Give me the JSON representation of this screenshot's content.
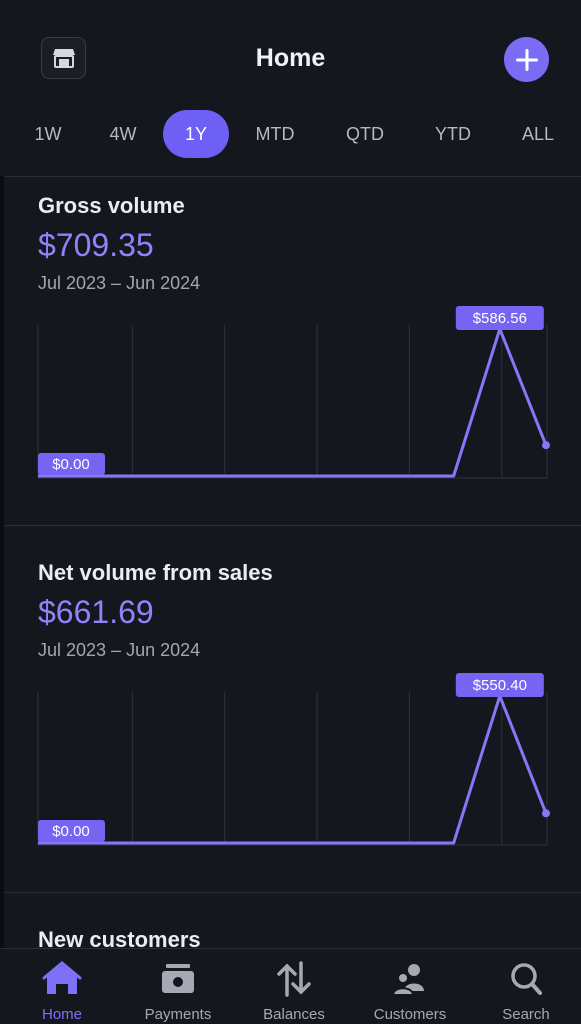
{
  "header": {
    "title": "Home",
    "store_icon": "storefront-icon",
    "add_icon": "plus-icon"
  },
  "range_tabs": [
    {
      "label": "1W",
      "active": false
    },
    {
      "label": "4W",
      "active": false
    },
    {
      "label": "1Y",
      "active": true
    },
    {
      "label": "MTD",
      "active": false
    },
    {
      "label": "QTD",
      "active": false
    },
    {
      "label": "YTD",
      "active": false
    },
    {
      "label": "ALL",
      "active": false
    }
  ],
  "cards": [
    {
      "title": "Gross volume",
      "value": "$709.35",
      "range": "Jul 2023 – Jun 2024",
      "chart_data": {
        "type": "line",
        "x": [
          "2023-07",
          "2023-08",
          "2023-09",
          "2023-10",
          "2023-11",
          "2023-12",
          "2024-01",
          "2024-02",
          "2024-03",
          "2024-04",
          "2024-05",
          "2024-06"
        ],
        "values": [
          0,
          0,
          0,
          0,
          0,
          0,
          0,
          0,
          0,
          0,
          586.56,
          122.79
        ],
        "ylim": [
          0,
          586.56
        ],
        "min_label": "$0.00",
        "max_label": "$586.56",
        "grid": true,
        "color": "#8677f8"
      }
    },
    {
      "title": "Net volume from sales",
      "value": "$661.69",
      "range": "Jul 2023 – Jun 2024",
      "chart_data": {
        "type": "line",
        "x": [
          "2023-07",
          "2023-08",
          "2023-09",
          "2023-10",
          "2023-11",
          "2023-12",
          "2024-01",
          "2024-02",
          "2024-03",
          "2024-04",
          "2024-05",
          "2024-06"
        ],
        "values": [
          0,
          0,
          0,
          0,
          0,
          0,
          0,
          0,
          0,
          0,
          550.4,
          111.29
        ],
        "ylim": [
          0,
          550.4
        ],
        "min_label": "$0.00",
        "max_label": "$550.40",
        "grid": true,
        "color": "#8677f8"
      }
    },
    {
      "title": "New customers"
    }
  ],
  "tabbar": [
    {
      "label": "Home",
      "icon": "home-icon",
      "active": true
    },
    {
      "label": "Payments",
      "icon": "payments-icon",
      "active": false
    },
    {
      "label": "Balances",
      "icon": "balances-icon",
      "active": false
    },
    {
      "label": "Customers",
      "icon": "customers-icon",
      "active": false
    },
    {
      "label": "Search",
      "icon": "search-icon",
      "active": false
    }
  ]
}
